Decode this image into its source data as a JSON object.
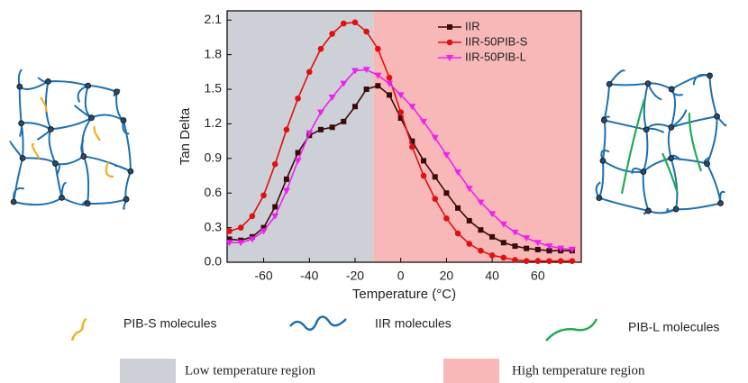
{
  "chart_data": {
    "type": "line",
    "xlabel": "Temperature (°C)",
    "ylabel": "Tan Delta",
    "xlim": [
      -76,
      79
    ],
    "ylim": [
      0,
      2.18
    ],
    "xticks": [
      -60,
      -40,
      -20,
      0,
      20,
      40,
      60
    ],
    "yticks": [
      {
        "value": 0,
        "label": "0.0"
      },
      0.3,
      0.6,
      0.9,
      1.2,
      1.5,
      1.8,
      2.1
    ],
    "legend": "upper right",
    "regions": [
      {
        "label": "Low temperature region",
        "color": "#cdd0d6",
        "from": -76,
        "to": -12
      },
      {
        "label": "High temperature region",
        "color": "#f8b8b8",
        "from": -12,
        "to": 79
      }
    ],
    "molecules": [
      {
        "label": "PIB-S molecules",
        "color": "#f0b020"
      },
      {
        "label": "IIR molecules",
        "color": "#1e6fb0"
      },
      {
        "label": "PIB-L molecules",
        "color": "#22aa55"
      }
    ],
    "x": [
      -75,
      -70,
      -65,
      -60,
      -55,
      -50,
      -45,
      -40,
      -35,
      -30,
      -25,
      -20,
      -15,
      -10,
      -5,
      0,
      5,
      10,
      15,
      20,
      25,
      30,
      35,
      40,
      45,
      50,
      55,
      60,
      65,
      70,
      75
    ],
    "series": [
      {
        "name": "IIR",
        "color": "#3a0a0a",
        "marker": "square",
        "values": [
          0.2,
          0.19,
          0.22,
          0.3,
          0.48,
          0.72,
          0.95,
          1.1,
          1.15,
          1.17,
          1.22,
          1.35,
          1.5,
          1.53,
          1.45,
          1.25,
          1.05,
          0.88,
          0.74,
          0.6,
          0.47,
          0.36,
          0.28,
          0.22,
          0.17,
          0.14,
          0.12,
          0.11,
          0.1,
          0.1,
          0.1
        ]
      },
      {
        "name": "IIR-50PIB-S",
        "color": "#e01010",
        "marker": "circle",
        "values": [
          0.27,
          0.3,
          0.4,
          0.58,
          0.85,
          1.15,
          1.42,
          1.65,
          1.85,
          1.98,
          2.07,
          2.08,
          2.0,
          1.85,
          1.6,
          1.3,
          1.0,
          0.75,
          0.55,
          0.38,
          0.25,
          0.16,
          0.1,
          0.06,
          0.04,
          0.02,
          0.01,
          0.01,
          0.01,
          0.01,
          0.01
        ]
      },
      {
        "name": "IIR-50PIB-L",
        "color": "#ee22ee",
        "marker": "triangle-down",
        "values": [
          0.17,
          0.17,
          0.2,
          0.27,
          0.4,
          0.62,
          0.88,
          1.12,
          1.3,
          1.43,
          1.55,
          1.66,
          1.67,
          1.62,
          1.55,
          1.45,
          1.35,
          1.22,
          1.08,
          0.93,
          0.78,
          0.64,
          0.52,
          0.42,
          0.33,
          0.26,
          0.21,
          0.17,
          0.14,
          0.12,
          0.11
        ]
      }
    ]
  }
}
